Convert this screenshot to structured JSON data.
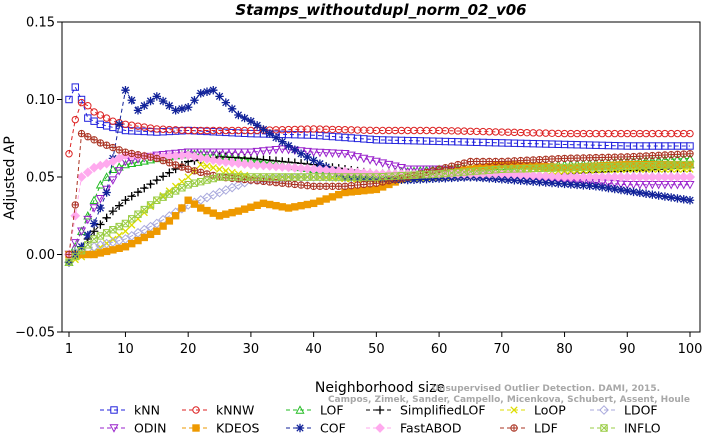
{
  "chart_data": {
    "type": "line",
    "title": "Stamps_withoutdupl_norm_02_v06",
    "xlabel": "Neighborhood size",
    "ylabel": "Adjusted AP",
    "xlim": [
      1,
      100
    ],
    "ylim": [
      -0.05,
      0.15
    ],
    "x_ticks": [
      "1",
      "10",
      "20",
      "30",
      "40",
      "50",
      "60",
      "70",
      "80",
      "90",
      "100"
    ],
    "y_ticks": [
      "−0.05",
      "0.00",
      "0.05",
      "0.10",
      "0.15"
    ],
    "grid": false,
    "legend_position": "bottom",
    "watermark": [
      "Unsupervised Outlier Detection. DAMI, 2015.",
      "Campos, Zimek, Sander, Campello, Micenkova, Schubert, Assent, Houle"
    ],
    "series": [
      {
        "name": "kNN",
        "color": "#2222dd",
        "marker": "square",
        "points": [
          [
            1,
            0.1
          ],
          [
            2,
            0.108
          ],
          [
            3,
            0.1
          ],
          [
            4,
            0.088
          ],
          [
            5,
            0.086
          ],
          [
            6,
            0.084
          ],
          [
            8,
            0.082
          ],
          [
            10,
            0.08
          ],
          [
            15,
            0.079
          ],
          [
            20,
            0.08
          ],
          [
            25,
            0.079
          ],
          [
            30,
            0.078
          ],
          [
            40,
            0.077
          ],
          [
            50,
            0.074
          ],
          [
            60,
            0.073
          ],
          [
            70,
            0.072
          ],
          [
            80,
            0.071
          ],
          [
            90,
            0.07
          ],
          [
            100,
            0.07
          ]
        ]
      },
      {
        "name": "kNNW",
        "color": "#dd2222",
        "marker": "circle",
        "points": [
          [
            1,
            0.065
          ],
          [
            2,
            0.087
          ],
          [
            3,
            0.098
          ],
          [
            4,
            0.096
          ],
          [
            5,
            0.092
          ],
          [
            6,
            0.09
          ],
          [
            8,
            0.086
          ],
          [
            10,
            0.084
          ],
          [
            15,
            0.081
          ],
          [
            20,
            0.08
          ],
          [
            30,
            0.08
          ],
          [
            40,
            0.081
          ],
          [
            50,
            0.08
          ],
          [
            60,
            0.08
          ],
          [
            70,
            0.079
          ],
          [
            80,
            0.078
          ],
          [
            90,
            0.078
          ],
          [
            100,
            0.078
          ]
        ]
      },
      {
        "name": "LOF",
        "color": "#22bb22",
        "marker": "triangle-up",
        "points": [
          [
            1,
            -0.005
          ],
          [
            3,
            0.015
          ],
          [
            5,
            0.035
          ],
          [
            6,
            0.045
          ],
          [
            8,
            0.055
          ],
          [
            10,
            0.058
          ],
          [
            15,
            0.062
          ],
          [
            20,
            0.065
          ],
          [
            25,
            0.064
          ],
          [
            30,
            0.061
          ],
          [
            40,
            0.055
          ],
          [
            50,
            0.052
          ],
          [
            60,
            0.055
          ],
          [
            70,
            0.057
          ],
          [
            80,
            0.058
          ],
          [
            90,
            0.06
          ],
          [
            100,
            0.062
          ]
        ]
      },
      {
        "name": "SimplifiedLOF",
        "color": "#000000",
        "marker": "plus",
        "points": [
          [
            1,
            -0.005
          ],
          [
            3,
            0.005
          ],
          [
            5,
            0.015
          ],
          [
            8,
            0.028
          ],
          [
            10,
            0.035
          ],
          [
            15,
            0.048
          ],
          [
            20,
            0.06
          ],
          [
            25,
            0.063
          ],
          [
            30,
            0.062
          ],
          [
            40,
            0.058
          ],
          [
            50,
            0.052
          ],
          [
            60,
            0.05
          ],
          [
            70,
            0.05
          ],
          [
            80,
            0.052
          ],
          [
            90,
            0.054
          ],
          [
            100,
            0.056
          ]
        ]
      },
      {
        "name": "LoOP",
        "color": "#dddd00",
        "marker": "x",
        "points": [
          [
            1,
            -0.005
          ],
          [
            5,
            0.002
          ],
          [
            10,
            0.015
          ],
          [
            15,
            0.035
          ],
          [
            20,
            0.05
          ],
          [
            22,
            0.058
          ],
          [
            25,
            0.055
          ],
          [
            30,
            0.05
          ],
          [
            40,
            0.05
          ],
          [
            50,
            0.048
          ],
          [
            60,
            0.05
          ],
          [
            70,
            0.052
          ],
          [
            80,
            0.054
          ],
          [
            90,
            0.055
          ],
          [
            100,
            0.055
          ]
        ]
      },
      {
        "name": "LDOF",
        "color": "#aaaadd",
        "marker": "diamond",
        "points": [
          [
            1,
            0.0
          ],
          [
            5,
            0.005
          ],
          [
            10,
            0.01
          ],
          [
            15,
            0.02
          ],
          [
            20,
            0.032
          ],
          [
            25,
            0.04
          ],
          [
            30,
            0.048
          ],
          [
            40,
            0.05
          ],
          [
            50,
            0.05
          ],
          [
            60,
            0.05
          ],
          [
            70,
            0.05
          ],
          [
            80,
            0.05
          ],
          [
            90,
            0.05
          ],
          [
            100,
            0.05
          ]
        ]
      },
      {
        "name": "ODIN",
        "color": "#9922cc",
        "marker": "triangle-down",
        "points": [
          [
            1,
            0.0
          ],
          [
            5,
            0.03
          ],
          [
            10,
            0.06
          ],
          [
            15,
            0.064
          ],
          [
            20,
            0.066
          ],
          [
            25,
            0.066
          ],
          [
            30,
            0.066
          ],
          [
            35,
            0.068
          ],
          [
            40,
            0.066
          ],
          [
            45,
            0.065
          ],
          [
            50,
            0.06
          ],
          [
            55,
            0.055
          ],
          [
            60,
            0.055
          ],
          [
            70,
            0.05
          ],
          [
            80,
            0.048
          ],
          [
            90,
            0.045
          ],
          [
            100,
            0.045
          ]
        ]
      },
      {
        "name": "KDEOS",
        "color": "#ee9900",
        "marker": "square-filled",
        "points": [
          [
            1,
            0.0
          ],
          [
            5,
            0.0
          ],
          [
            10,
            0.005
          ],
          [
            15,
            0.015
          ],
          [
            18,
            0.025
          ],
          [
            20,
            0.035
          ],
          [
            22,
            0.03
          ],
          [
            25,
            0.025
          ],
          [
            28,
            0.028
          ],
          [
            32,
            0.033
          ],
          [
            36,
            0.03
          ],
          [
            40,
            0.033
          ],
          [
            45,
            0.04
          ],
          [
            50,
            0.042
          ],
          [
            55,
            0.05
          ],
          [
            60,
            0.052
          ],
          [
            65,
            0.055
          ],
          [
            70,
            0.058
          ],
          [
            80,
            0.056
          ],
          [
            90,
            0.058
          ],
          [
            100,
            0.058
          ]
        ]
      },
      {
        "name": "COF",
        "color": "#112299",
        "marker": "star",
        "points": [
          [
            1,
            -0.005
          ],
          [
            3,
            0.005
          ],
          [
            5,
            0.02
          ],
          [
            7,
            0.04
          ],
          [
            10,
            0.106
          ],
          [
            12,
            0.093
          ],
          [
            15,
            0.102
          ],
          [
            18,
            0.093
          ],
          [
            20,
            0.095
          ],
          [
            22,
            0.104
          ],
          [
            24,
            0.106
          ],
          [
            26,
            0.098
          ],
          [
            28,
            0.09
          ],
          [
            30,
            0.086
          ],
          [
            33,
            0.078
          ],
          [
            38,
            0.065
          ],
          [
            45,
            0.05
          ],
          [
            55,
            0.048
          ],
          [
            65,
            0.05
          ],
          [
            75,
            0.047
          ],
          [
            85,
            0.044
          ],
          [
            95,
            0.038
          ],
          [
            100,
            0.035
          ]
        ]
      },
      {
        "name": "FastABOD",
        "color": "#ffaaee",
        "marker": "diamond-filled",
        "points": [
          [
            1,
            0.0
          ],
          [
            3,
            0.05
          ],
          [
            5,
            0.056
          ],
          [
            8,
            0.06
          ],
          [
            10,
            0.064
          ],
          [
            15,
            0.063
          ],
          [
            20,
            0.064
          ],
          [
            25,
            0.06
          ],
          [
            30,
            0.058
          ],
          [
            40,
            0.055
          ],
          [
            50,
            0.052
          ],
          [
            60,
            0.052
          ],
          [
            70,
            0.052
          ],
          [
            80,
            0.05
          ],
          [
            90,
            0.05
          ],
          [
            100,
            0.05
          ]
        ]
      },
      {
        "name": "LDF",
        "color": "#aa3322",
        "marker": "circle-plus",
        "points": [
          [
            1,
            0.0
          ],
          [
            2,
            0.032
          ],
          [
            3,
            0.078
          ],
          [
            4,
            0.076
          ],
          [
            6,
            0.072
          ],
          [
            10,
            0.066
          ],
          [
            15,
            0.062
          ],
          [
            20,
            0.055
          ],
          [
            25,
            0.05
          ],
          [
            30,
            0.048
          ],
          [
            35,
            0.046
          ],
          [
            40,
            0.044
          ],
          [
            45,
            0.044
          ],
          [
            50,
            0.046
          ],
          [
            55,
            0.05
          ],
          [
            60,
            0.055
          ],
          [
            65,
            0.06
          ],
          [
            70,
            0.06
          ],
          [
            80,
            0.062
          ],
          [
            90,
            0.063
          ],
          [
            100,
            0.065
          ]
        ]
      },
      {
        "name": "INFLO",
        "color": "#99cc44",
        "marker": "star-box",
        "points": [
          [
            1,
            -0.005
          ],
          [
            5,
            0.01
          ],
          [
            10,
            0.02
          ],
          [
            15,
            0.035
          ],
          [
            20,
            0.045
          ],
          [
            25,
            0.05
          ],
          [
            30,
            0.05
          ],
          [
            40,
            0.05
          ],
          [
            50,
            0.05
          ],
          [
            60,
            0.052
          ],
          [
            70,
            0.055
          ],
          [
            80,
            0.056
          ],
          [
            90,
            0.057
          ],
          [
            100,
            0.058
          ]
        ]
      }
    ]
  }
}
